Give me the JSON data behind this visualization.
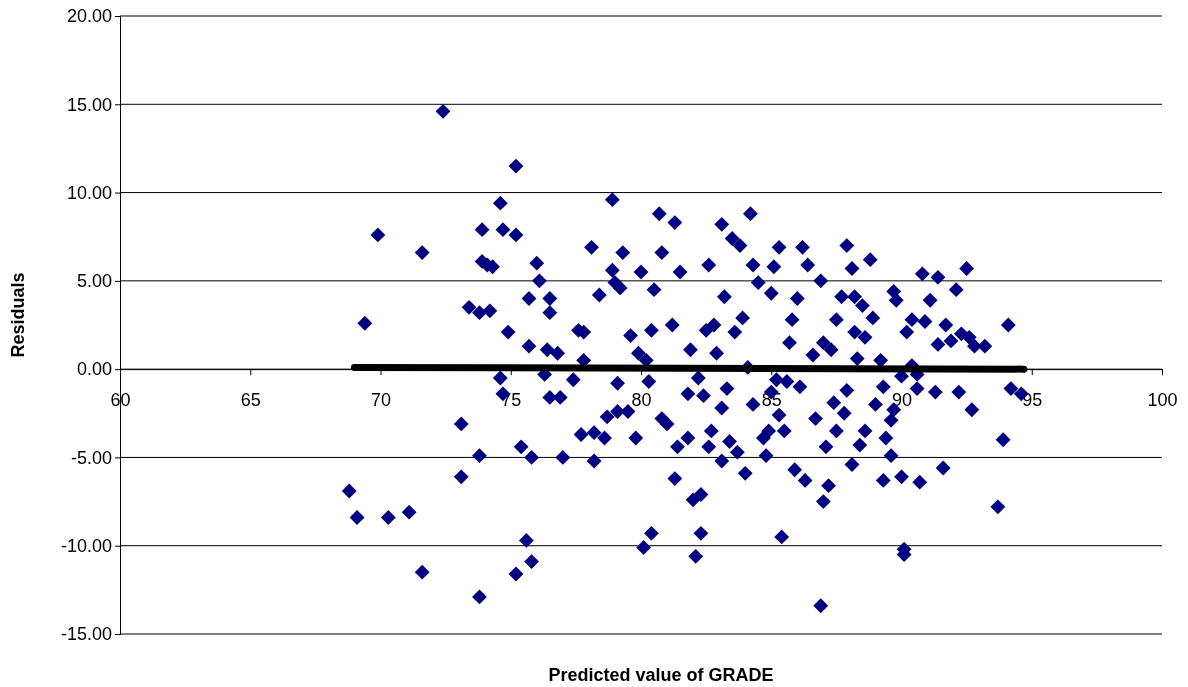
{
  "chart_data": {
    "type": "scatter",
    "xlabel": "Predicted value of GRADE",
    "ylabel": "Residuals",
    "xlim": [
      60,
      100
    ],
    "xticks": [
      60,
      65,
      70,
      75,
      80,
      85,
      90,
      95,
      100
    ],
    "ylim": [
      -15,
      20
    ],
    "yticks": [
      {
        "value": -15,
        "label": "-15.00"
      },
      {
        "value": -10,
        "label": "-10.00"
      },
      {
        "value": -5,
        "label": "-5.00"
      },
      {
        "value": 0,
        "label": "0.00"
      },
      {
        "value": 5,
        "label": "5.00"
      },
      {
        "value": 10,
        "label": "10.00"
      },
      {
        "value": 15,
        "label": "15.00"
      },
      {
        "value": 20,
        "label": "20.00"
      }
    ],
    "grid": "y",
    "marker": "diamond",
    "series": [
      {
        "color": "#000080",
        "x": [
          68.8,
          69.1,
          69.4,
          69.9,
          70.3,
          71.1,
          71.6,
          71.6,
          72.4,
          73.1,
          73.1,
          73.4,
          73.8,
          73.9,
          73.9,
          73.8,
          73.8,
          74.1,
          74.3,
          74.2,
          74.6,
          74.6,
          74.7,
          74.9,
          74.7,
          75.2,
          75.2,
          75.2,
          75.4,
          75.6,
          75.7,
          75.7,
          75.8,
          76.0,
          75.8,
          76.1,
          76.3,
          76.4,
          76.5,
          76.5,
          76.5,
          76.8,
          76.9,
          77.0,
          77.4,
          77.6,
          77.7,
          77.8,
          77.8,
          78.1,
          78.2,
          78.2,
          78.4,
          78.6,
          78.7,
          78.9,
          79.0,
          78.9,
          79.1,
          79.1,
          79.2,
          79.3,
          79.5,
          79.6,
          79.8,
          79.9,
          80.0,
          80.1,
          80.2,
          80.3,
          80.4,
          80.4,
          80.5,
          80.7,
          80.8,
          80.8,
          81.0,
          81.2,
          81.3,
          81.3,
          81.4,
          81.5,
          81.8,
          81.8,
          81.9,
          82.0,
          82.1,
          82.2,
          82.3,
          82.3,
          82.4,
          82.5,
          82.6,
          82.6,
          82.7,
          82.8,
          82.9,
          83.1,
          83.1,
          83.1,
          83.2,
          83.3,
          83.4,
          83.5,
          83.6,
          83.7,
          83.8,
          83.9,
          84.0,
          84.1,
          84.2,
          84.3,
          84.3,
          84.5,
          84.7,
          84.8,
          84.9,
          85.0,
          85.0,
          85.1,
          85.2,
          85.3,
          85.3,
          85.4,
          85.5,
          85.6,
          85.7,
          85.8,
          85.9,
          86.0,
          86.1,
          86.2,
          86.3,
          86.4,
          86.6,
          86.7,
          86.9,
          87.0,
          87.0,
          87.1,
          87.2,
          86.9,
          87.3,
          87.4,
          87.5,
          87.5,
          87.7,
          87.8,
          87.9,
          87.9,
          88.1,
          88.1,
          88.2,
          88.2,
          88.3,
          88.4,
          88.5,
          88.6,
          88.6,
          88.8,
          88.9,
          89.0,
          89.2,
          89.3,
          89.3,
          89.4,
          89.6,
          89.6,
          89.7,
          89.8,
          89.7,
          90.0,
          90.0,
          90.1,
          90.1,
          90.2,
          90.4,
          90.4,
          90.6,
          90.6,
          90.8,
          90.7,
          90.9,
          91.1,
          91.3,
          91.4,
          91.4,
          91.6,
          91.7,
          91.9,
          92.1,
          92.2,
          92.3,
          92.5,
          92.6,
          92.7,
          92.8,
          93.2,
          93.7,
          93.9,
          94.1,
          94.2,
          94.6
        ],
        "values": [
          -6.9,
          -8.4,
          2.6,
          7.6,
          -8.4,
          -8.1,
          6.6,
          -11.5,
          14.6,
          -3.1,
          -6.1,
          3.5,
          3.2,
          6.1,
          7.9,
          -4.9,
          -12.9,
          5.9,
          5.8,
          3.3,
          9.4,
          -0.5,
          -1.4,
          2.1,
          7.9,
          11.5,
          7.6,
          -11.6,
          -4.4,
          -9.7,
          4.0,
          1.3,
          -10.9,
          6.0,
          -5.0,
          5.0,
          -0.3,
          1.1,
          4.0,
          3.2,
          -1.6,
          0.9,
          -1.6,
          -5.0,
          -0.6,
          2.2,
          -3.7,
          2.1,
          0.5,
          6.9,
          -3.6,
          -5.2,
          4.2,
          -3.9,
          -2.7,
          9.6,
          4.9,
          5.6,
          -0.8,
          -2.4,
          4.6,
          6.6,
          -2.4,
          1.9,
          -3.9,
          0.9,
          5.5,
          -10.1,
          0.5,
          -0.7,
          2.2,
          -9.3,
          4.5,
          8.8,
          -2.8,
          6.6,
          -3.1,
          2.5,
          8.3,
          -6.2,
          -4.4,
          5.5,
          -3.9,
          -1.4,
          1.1,
          -7.4,
          -10.6,
          -0.5,
          -7.1,
          -9.3,
          -1.5,
          2.2,
          -4.4,
          5.9,
          -3.5,
          2.5,
          0.9,
          8.2,
          -2.2,
          -5.2,
          4.1,
          -1.1,
          -4.1,
          7.4,
          2.1,
          -4.7,
          7.0,
          2.9,
          -5.9,
          0.1,
          8.8,
          -2.0,
          5.9,
          4.9,
          -3.9,
          -4.9,
          -3.5,
          -1.3,
          4.3,
          5.8,
          -0.6,
          6.9,
          -2.6,
          -9.5,
          -3.5,
          -0.7,
          1.5,
          2.8,
          -5.7,
          4.0,
          -1.0,
          6.9,
          -6.3,
          5.9,
          0.8,
          -2.8,
          5.0,
          1.5,
          -7.5,
          -4.4,
          -6.6,
          -13.4,
          1.1,
          -1.9,
          -3.5,
          2.8,
          4.1,
          -2.5,
          7.0,
          -1.2,
          5.7,
          -5.4,
          2.1,
          4.1,
          0.6,
          -4.3,
          3.6,
          -3.5,
          1.8,
          6.2,
          2.9,
          -2.0,
          0.5,
          -1.0,
          -6.3,
          -3.9,
          -2.9,
          -4.9,
          -2.3,
          3.9,
          4.4,
          -0.4,
          -6.1,
          -10.2,
          -10.5,
          2.1,
          2.8,
          0.2,
          -0.3,
          -1.1,
          5.4,
          -6.4,
          2.7,
          3.9,
          -1.3,
          1.4,
          5.2,
          -5.6,
          2.5,
          1.6,
          4.5,
          -1.3,
          2.0,
          5.7,
          1.8,
          -2.3,
          1.3,
          1.3,
          -7.8,
          -4.0,
          2.5,
          -1.1,
          -1.4
        ]
      },
      {
        "type": "line",
        "color": "#000000",
        "marker": "none",
        "x": [
          69,
          94.7
        ],
        "values": [
          0.1,
          0.0
        ]
      }
    ]
  }
}
